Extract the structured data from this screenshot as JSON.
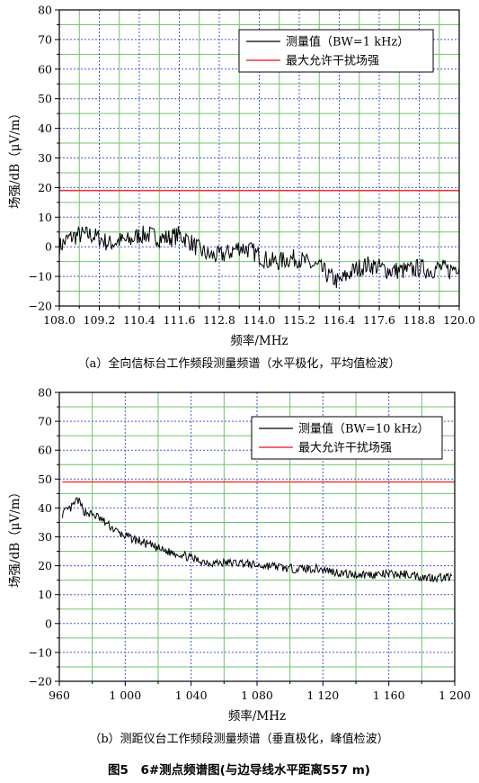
{
  "figure_caption": "图5　6#测点频谱图(与边导线水平距离557 m)",
  "colors": {
    "measured": "#000000",
    "limit": "#e8383d",
    "grid_major": "#3a5bd9",
    "grid_minor": "#6fc46f"
  },
  "chart_data": [
    {
      "type": "line",
      "caption": "（a）全向信标台工作频段测量频谱（水平极化，平均值检波）",
      "xlabel": "频率/MHz",
      "ylabel": "场强/dB（μV/m）",
      "xlim": [
        108.0,
        120.0
      ],
      "ylim": [
        -20,
        80
      ],
      "xticks": [
        "108.0",
        "109.2",
        "110.4",
        "111.6",
        "112.8",
        "114.0",
        "115.2",
        "116.4",
        "117.6",
        "118.8",
        "120.0"
      ],
      "yticks": [
        "-20",
        "-10",
        "0",
        "10",
        "20",
        "30",
        "40",
        "50",
        "60",
        "70",
        "80"
      ],
      "grid": true,
      "legend_position": "top-right",
      "legend": [
        "测量值（BW=1 kHz）",
        "最大允许干扰场强"
      ],
      "series": [
        {
          "name": "测量值（BW=1 kHz）",
          "x": [
            108.0,
            108.3,
            108.6,
            108.9,
            109.2,
            109.5,
            109.8,
            110.1,
            110.4,
            110.7,
            111.0,
            111.3,
            111.6,
            111.9,
            112.2,
            112.5,
            112.8,
            113.1,
            113.4,
            113.7,
            114.0,
            114.3,
            114.6,
            114.9,
            115.2,
            115.5,
            115.8,
            116.1,
            116.4,
            116.7,
            117.0,
            117.3,
            117.6,
            117.9,
            118.2,
            118.5,
            118.8,
            119.1,
            119.4,
            119.7,
            120.0
          ],
          "values": [
            0,
            3,
            4,
            4,
            3,
            1,
            2,
            2,
            4,
            4,
            3,
            3,
            4,
            2,
            -1,
            -3,
            -3,
            -2,
            0,
            -1,
            -3,
            -5,
            -5,
            -4,
            -4,
            -6,
            -7,
            -10,
            -12,
            -9,
            -7,
            -6,
            -7,
            -8,
            -8,
            -8,
            -7,
            -8,
            -7,
            -8,
            -6
          ]
        },
        {
          "name": "最大允许干扰场强",
          "x": [
            108.0,
            120.0
          ],
          "values": [
            19,
            19
          ]
        }
      ]
    },
    {
      "type": "line",
      "caption": "（b）测距仪台工作频段测量频谱（垂直极化，峰值检波）",
      "xlabel": "频率/MHz",
      "ylabel": "场强/dB（μV/m）",
      "xlim": [
        960,
        1220
      ],
      "ylim": [
        -20,
        80
      ],
      "xticks": [
        "960",
        "1 000",
        "1 040",
        "1 080",
        "1 120",
        "1 160",
        "1 200"
      ],
      "yticks": [
        "-20",
        "-10",
        "0",
        "10",
        "20",
        "30",
        "40",
        "50",
        "60",
        "70",
        "80"
      ],
      "grid": true,
      "legend_position": "top-right",
      "legend": [
        "测量值（BW=10 kHz）",
        "最大允许干扰场强"
      ],
      "series": [
        {
          "name": "测量值（BW=10 kHz）",
          "x": [
            962,
            968,
            972,
            976,
            980,
            985,
            990,
            995,
            1000,
            1010,
            1020,
            1030,
            1040,
            1050,
            1060,
            1070,
            1080,
            1090,
            1100,
            1110,
            1120,
            1130,
            1140,
            1150,
            1160,
            1170,
            1180,
            1190,
            1200,
            1210,
            1218
          ],
          "values": [
            38,
            40,
            43,
            39,
            38,
            37,
            35,
            33,
            31,
            29,
            27,
            25,
            24,
            22,
            21,
            21,
            21,
            20,
            20,
            19,
            19,
            19,
            18,
            17,
            17,
            17,
            17,
            17,
            16,
            16,
            16
          ]
        },
        {
          "name": "最大允许干扰场强",
          "x": [
            962,
            1220
          ],
          "values": [
            49,
            49
          ]
        }
      ]
    }
  ]
}
